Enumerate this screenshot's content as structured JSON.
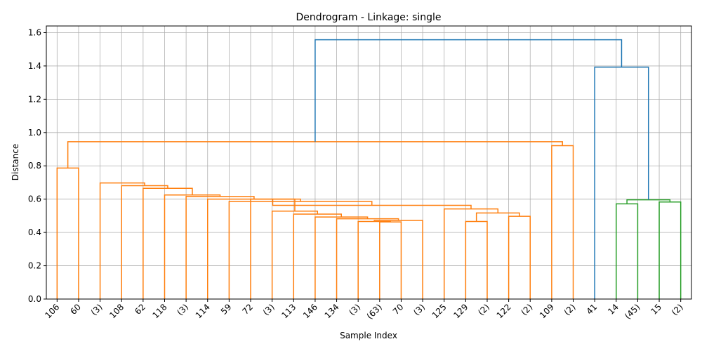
{
  "chart_data": {
    "type": "dendrogram",
    "title": "Dendrogram - Linkage: single",
    "xlabel": "Sample Index",
    "ylabel": "Distance",
    "ylim": [
      0,
      1.64
    ],
    "yticks": [
      0.0,
      0.2,
      0.4,
      0.6,
      0.8,
      1.0,
      1.2,
      1.4,
      1.6
    ],
    "grid": true,
    "leaves": [
      "106",
      "60",
      "(3)",
      "108",
      "62",
      "118",
      "(3)",
      "114",
      "59",
      "72",
      "(3)",
      "113",
      "146",
      "134",
      "(3)",
      "(63)",
      "70",
      "(3)",
      "125",
      "129",
      "(2)",
      "122",
      "(2)",
      "109",
      "(2)",
      "41",
      "14",
      "(45)",
      "15",
      "(2)"
    ],
    "colors": {
      "cluster_1": "#ff7f0e",
      "cluster_2": "#2ca02c",
      "root": "#1f77b4"
    },
    "links": [
      {
        "left": 15,
        "right": 16,
        "height": 0.463,
        "color": "cluster_1"
      },
      {
        "left": 14,
        "right": 30,
        "height": 0.466,
        "color": "cluster_1"
      },
      {
        "left": 17,
        "right": 31,
        "height": 0.472,
        "color": "cluster_1"
      },
      {
        "left": 13,
        "right": 32,
        "height": 0.482,
        "color": "cluster_1"
      },
      {
        "left": 12,
        "right": 33,
        "height": 0.493,
        "color": "cluster_1"
      },
      {
        "left": 11,
        "right": 34,
        "height": 0.51,
        "color": "cluster_1"
      },
      {
        "left": 10,
        "right": 35,
        "height": 0.528,
        "color": "cluster_1"
      },
      {
        "left": 9,
        "right": 36,
        "height": 0.6,
        "color": "cluster_1"
      },
      {
        "left": 19,
        "right": 20,
        "height": 0.466,
        "color": "cluster_1"
      },
      {
        "left": 21,
        "right": 22,
        "height": 0.497,
        "color": "cluster_1"
      },
      {
        "left": 38,
        "right": 39,
        "height": 0.517,
        "color": "cluster_1"
      },
      {
        "left": 18,
        "right": 40,
        "height": 0.541,
        "color": "cluster_1"
      },
      {
        "left": 37,
        "right": 41,
        "height": 0.563,
        "color": "cluster_1"
      },
      {
        "left": 8,
        "right": 42,
        "height": 0.586,
        "color": "cluster_1"
      },
      {
        "left": 7,
        "right": 43,
        "height": 0.6,
        "color": "cluster_1"
      },
      {
        "left": 6,
        "right": 44,
        "height": 0.616,
        "color": "cluster_1"
      },
      {
        "left": 5,
        "right": 45,
        "height": 0.625,
        "color": "cluster_1"
      },
      {
        "left": 4,
        "right": 46,
        "height": 0.665,
        "color": "cluster_1"
      },
      {
        "left": 3,
        "right": 47,
        "height": 0.681,
        "color": "cluster_1"
      },
      {
        "left": 2,
        "right": 48,
        "height": 0.697,
        "color": "cluster_1"
      },
      {
        "left": 0,
        "right": 1,
        "height": 0.787,
        "color": "cluster_1"
      },
      {
        "left": 23,
        "right": 24,
        "height": 0.921,
        "color": "cluster_1"
      },
      {
        "left": 50,
        "right": 51,
        "height": 0.945,
        "color": "cluster_1"
      },
      {
        "left": 26,
        "right": 27,
        "height": 0.572,
        "color": "cluster_2"
      },
      {
        "left": 28,
        "right": 29,
        "height": 0.583,
        "color": "cluster_2"
      },
      {
        "left": 53,
        "right": 54,
        "height": 0.596,
        "color": "cluster_2"
      },
      {
        "left": 25,
        "right": 55,
        "height": 1.393,
        "color": "root"
      },
      {
        "left": 52,
        "right": 56,
        "height": 1.557,
        "color": "root"
      }
    ]
  }
}
